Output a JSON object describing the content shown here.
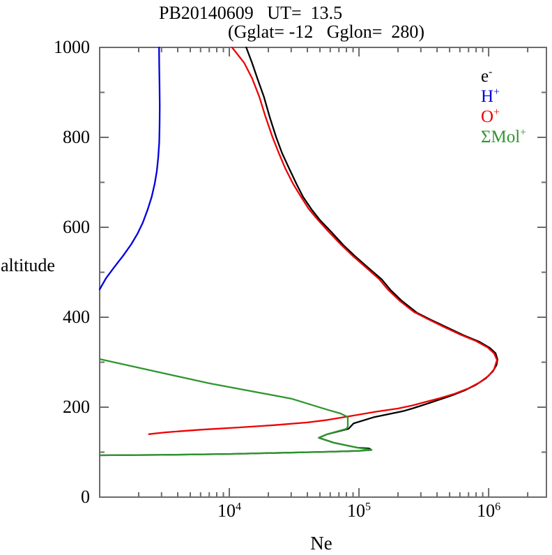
{
  "title": {
    "line1": "PB20140609   UT=  13.5",
    "line2": "(Gglat= -12   Gglon=  280)"
  },
  "axes": {
    "x": {
      "label": "Ne",
      "scale": "log",
      "min": 1000,
      "max": 2790000,
      "tick_label_base": "10",
      "major_ticks": [
        {
          "value": 10000,
          "exponent": "4"
        },
        {
          "value": 100000,
          "exponent": "5"
        },
        {
          "value": 1000000,
          "exponent": "6"
        }
      ]
    },
    "y": {
      "label": "altitude",
      "min": 0,
      "max": 1000,
      "major_ticks": [
        0,
        200,
        400,
        600,
        800,
        1000
      ],
      "minor_ticks": [
        100,
        300,
        500,
        700,
        900
      ]
    }
  },
  "legend": {
    "items": [
      {
        "base": "e",
        "sup": "-",
        "color": "#000000",
        "series": "electrons"
      },
      {
        "base": "H",
        "sup": "+",
        "color": "#0000dd",
        "series": "h_plus"
      },
      {
        "base": "O",
        "sup": "+",
        "color": "#ee0000",
        "series": "o_plus"
      },
      {
        "base": "ΣMol",
        "sup": "+",
        "color": "#2e962e",
        "series": "mol_plus"
      }
    ]
  },
  "colors": {
    "axis": "#6b6b6b",
    "background": "#ffffff",
    "text": "#000000"
  },
  "chart_data": {
    "type": "line",
    "title": "PB20140609 UT= 13.5 (Gglat= -12 Gglon= 280)",
    "xlabel": "Ne",
    "ylabel": "altitude",
    "x_scale": "log",
    "xlim": [
      1000,
      2790000
    ],
    "ylim": [
      0,
      1000
    ],
    "grid": false,
    "legend_position": "upper right",
    "series": [
      {
        "name": "e-",
        "color": "#000000",
        "points_ne_alt": [
          [
            1000,
            93
          ],
          [
            3000,
            94
          ],
          [
            10000,
            96
          ],
          [
            30000,
            99
          ],
          [
            60000,
            101
          ],
          [
            100000,
            103
          ],
          [
            125000,
            105
          ],
          [
            120000,
            108
          ],
          [
            97000,
            110
          ],
          [
            64000,
            121
          ],
          [
            49000,
            132
          ],
          [
            57000,
            140
          ],
          [
            83000,
            152
          ],
          [
            91000,
            164
          ],
          [
            131000,
            178
          ],
          [
            218000,
            191
          ],
          [
            258000,
            197
          ],
          [
            322000,
            206
          ],
          [
            400000,
            215
          ],
          [
            520000,
            226
          ],
          [
            650000,
            237
          ],
          [
            800000,
            250
          ],
          [
            950000,
            264
          ],
          [
            1080000,
            280
          ],
          [
            1150000,
            294
          ],
          [
            1170000,
            306
          ],
          [
            1130000,
            320
          ],
          [
            1020000,
            332
          ],
          [
            840000,
            346
          ],
          [
            640000,
            360
          ],
          [
            480000,
            377
          ],
          [
            360000,
            394
          ],
          [
            280000,
            410
          ],
          [
            215000,
            436
          ],
          [
            176000,
            460
          ],
          [
            150000,
            484
          ],
          [
            118000,
            510
          ],
          [
            93000,
            536
          ],
          [
            76000,
            560
          ],
          [
            61000,
            590
          ],
          [
            50000,
            616
          ],
          [
            43000,
            640
          ],
          [
            37000,
            668
          ],
          [
            33000,
            696
          ],
          [
            29000,
            730
          ],
          [
            25500,
            765
          ],
          [
            23000,
            800
          ],
          [
            20500,
            845
          ],
          [
            18500,
            890
          ],
          [
            16500,
            930
          ],
          [
            15000,
            965
          ],
          [
            13500,
            1000
          ]
        ]
      },
      {
        "name": "H+",
        "color": "#0000dd",
        "points_ne_alt": [
          [
            1000,
            462
          ],
          [
            1120,
            487
          ],
          [
            1300,
            512
          ],
          [
            1520,
            537
          ],
          [
            1750,
            562
          ],
          [
            1950,
            585
          ],
          [
            2150,
            610
          ],
          [
            2350,
            640
          ],
          [
            2520,
            668
          ],
          [
            2660,
            697
          ],
          [
            2760,
            725
          ],
          [
            2830,
            755
          ],
          [
            2880,
            790
          ],
          [
            2900,
            830
          ],
          [
            2905,
            870
          ],
          [
            2895,
            915
          ],
          [
            2880,
            955
          ],
          [
            2870,
            1000
          ]
        ]
      },
      {
        "name": "O+",
        "color": "#ee0000",
        "points_ne_alt": [
          [
            2400,
            140
          ],
          [
            3200,
            144
          ],
          [
            6000,
            150
          ],
          [
            12000,
            155
          ],
          [
            22000,
            160
          ],
          [
            40000,
            166
          ],
          [
            55000,
            171
          ],
          [
            85000,
            180
          ],
          [
            135000,
            190
          ],
          [
            200000,
            197
          ],
          [
            260000,
            204
          ],
          [
            320000,
            211
          ],
          [
            420000,
            220
          ],
          [
            550000,
            230
          ],
          [
            700000,
            242
          ],
          [
            850000,
            255
          ],
          [
            1000000,
            270
          ],
          [
            1100000,
            284
          ],
          [
            1160000,
            305
          ],
          [
            1100000,
            320
          ],
          [
            980000,
            333
          ],
          [
            800000,
            347
          ],
          [
            610000,
            361
          ],
          [
            455000,
            378
          ],
          [
            340000,
            396
          ],
          [
            265000,
            412
          ],
          [
            205000,
            437
          ],
          [
            168000,
            461
          ],
          [
            143000,
            485
          ],
          [
            113000,
            511
          ],
          [
            89000,
            537
          ],
          [
            73000,
            561
          ],
          [
            58000,
            591
          ],
          [
            48000,
            617
          ],
          [
            41000,
            641
          ],
          [
            35500,
            669
          ],
          [
            31000,
            697
          ],
          [
            27000,
            731
          ],
          [
            24000,
            766
          ],
          [
            21500,
            801
          ],
          [
            19000,
            846
          ],
          [
            17000,
            891
          ],
          [
            15000,
            931
          ],
          [
            13000,
            966
          ],
          [
            10500,
            1000
          ]
        ]
      },
      {
        "name": "ΣMol+",
        "color": "#2e962e",
        "points_ne_alt": [
          [
            1000,
            307
          ],
          [
            7000,
            253
          ],
          [
            30000,
            219
          ],
          [
            56000,
            195
          ],
          [
            72000,
            186
          ],
          [
            82000,
            178
          ],
          [
            82000,
            157
          ],
          [
            80000,
            152
          ],
          [
            57000,
            140
          ],
          [
            49000,
            132
          ],
          [
            64000,
            121
          ],
          [
            97000,
            110
          ],
          [
            125000,
            105
          ],
          [
            100000,
            103
          ],
          [
            60000,
            101
          ],
          [
            30000,
            99
          ],
          [
            10000,
            96
          ],
          [
            3000,
            94
          ],
          [
            1000,
            93
          ]
        ]
      }
    ]
  }
}
